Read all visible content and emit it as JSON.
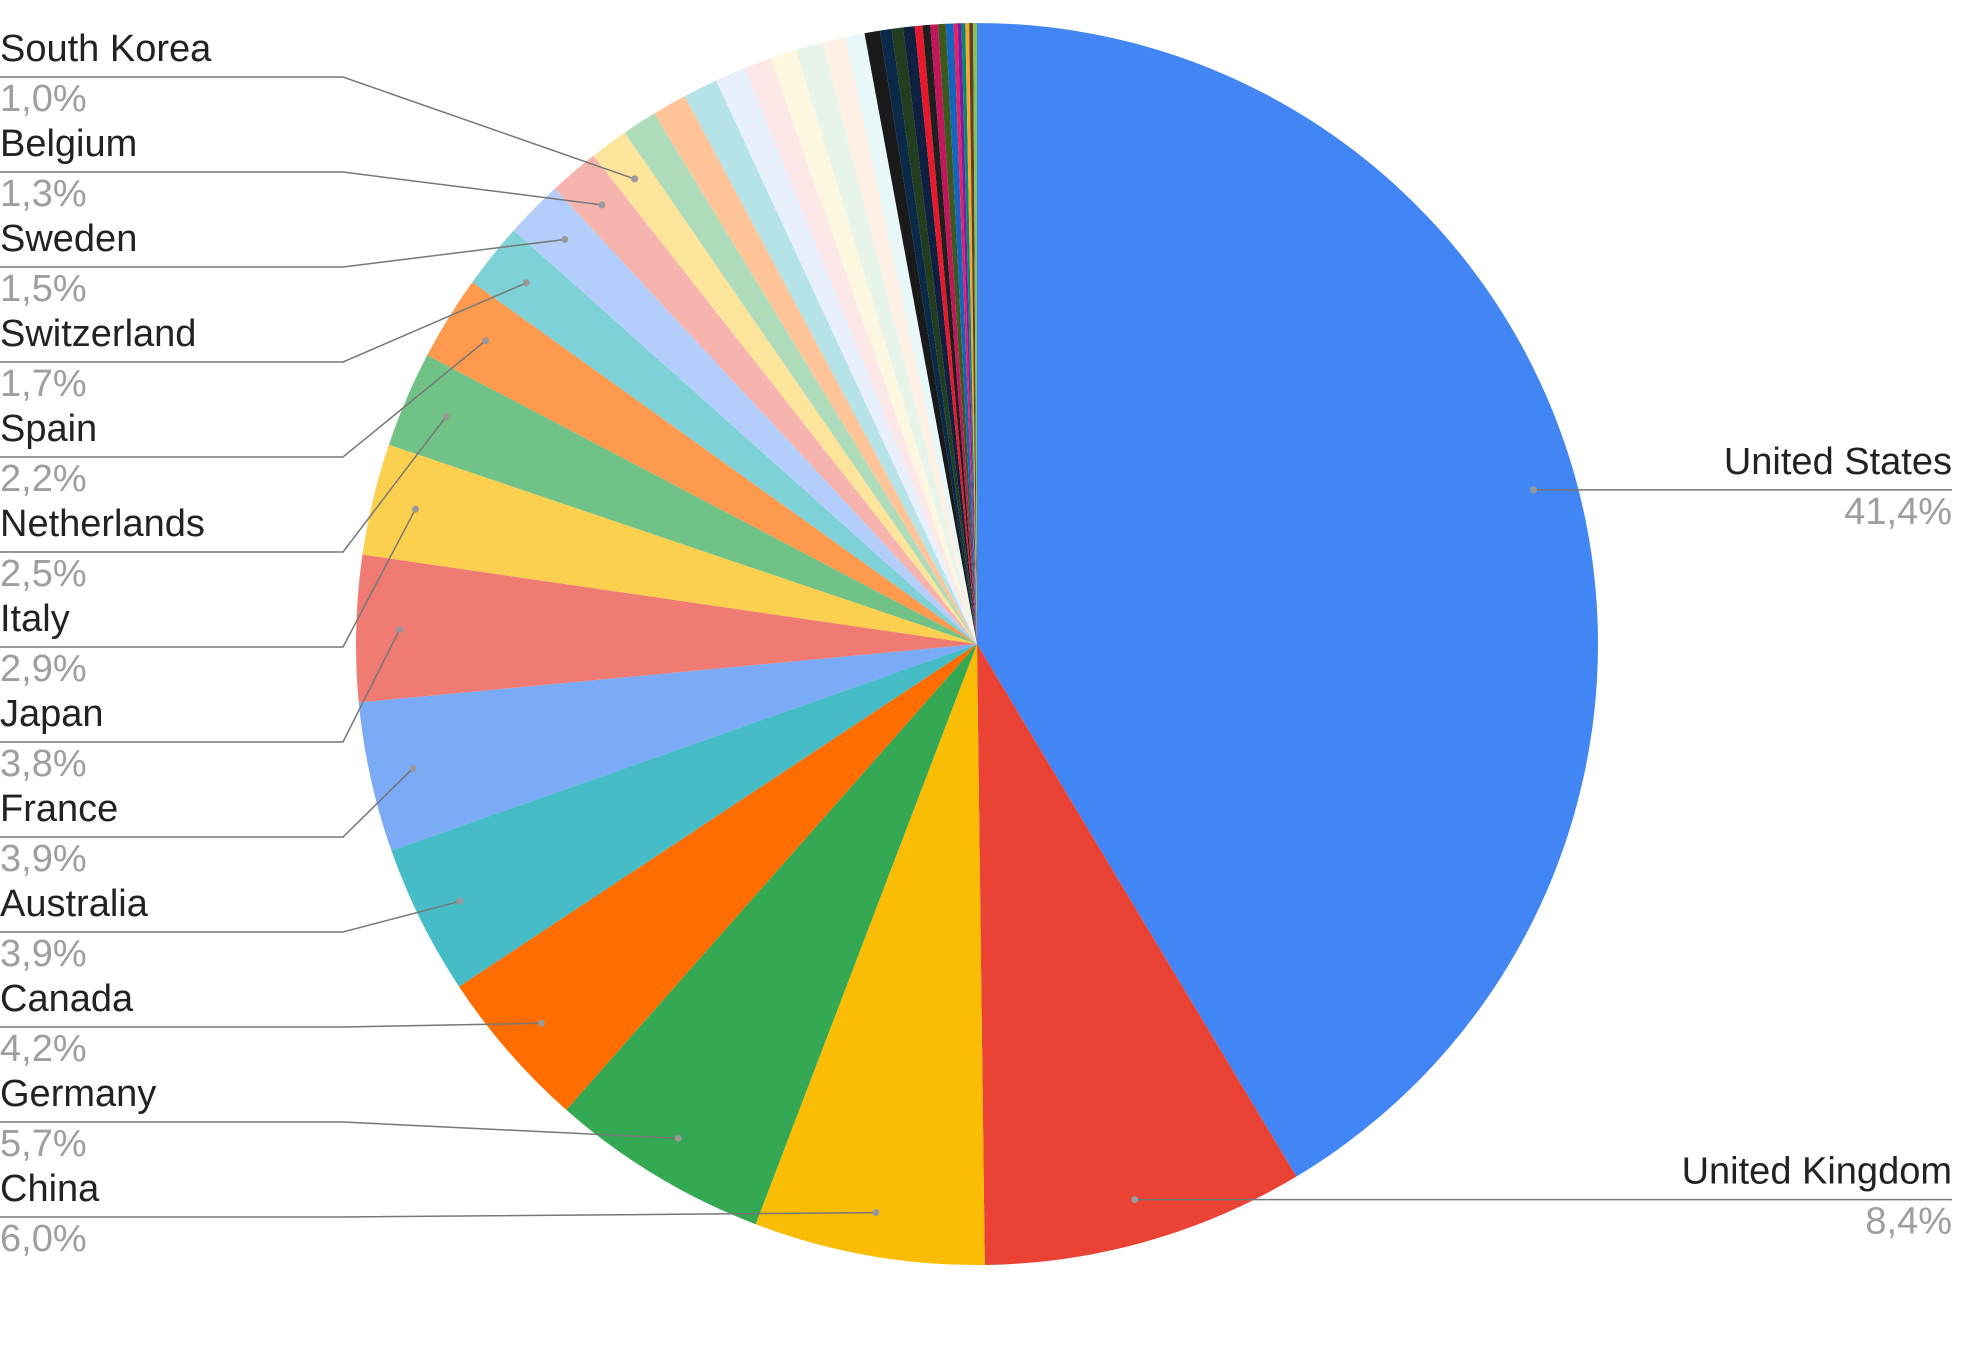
{
  "chart_data": {
    "type": "pie",
    "categories": [
      "United States",
      "United Kingdom",
      "China",
      "Germany",
      "Canada",
      "Australia",
      "France",
      "Japan",
      "Italy",
      "Netherlands",
      "Spain",
      "Switzerland",
      "Sweden",
      "Belgium",
      "South Korea",
      null,
      null,
      null,
      null,
      null,
      null,
      null,
      null,
      null,
      null,
      null,
      null,
      null,
      null,
      null,
      null,
      null,
      null,
      null,
      null,
      null,
      null,
      null,
      null
    ],
    "values": [
      41.4,
      8.4,
      6.0,
      5.7,
      4.2,
      3.9,
      3.9,
      3.8,
      2.9,
      2.5,
      2.2,
      1.7,
      1.5,
      1.3,
      1.0,
      0.9,
      0.9,
      0.9,
      0.8,
      0.7,
      0.7,
      0.7,
      0.6,
      0.5,
      0.4,
      0.3,
      0.3,
      0.3,
      0.2,
      0.2,
      0.2,
      0.2,
      0.2,
      0.1,
      0.1,
      0.1,
      0.1,
      0.1,
      0.1
    ],
    "value_labels": [
      "41,4%",
      "8,4%",
      "6,0%",
      "5,7%",
      "4,2%",
      "3,9%",
      "3,9%",
      "3,8%",
      "2,9%",
      "2,5%",
      "2,2%",
      "1,7%",
      "1,5%",
      "1,3%",
      "1,0%",
      null,
      null,
      null,
      null,
      null,
      null,
      null,
      null,
      null,
      null,
      null,
      null,
      null,
      null,
      null,
      null,
      null,
      null,
      null,
      null,
      null,
      null,
      null,
      null
    ],
    "colors": [
      "#4285f4",
      "#ea4335",
      "#fbbc04",
      "#34a853",
      "#ff6d01",
      "#46bdc6",
      "#7baaf7",
      "#f07b72",
      "#fcd04f",
      "#71c287",
      "#ff994d",
      "#7ed1d7",
      "#b3cefb",
      "#f7b4ae",
      "#fde49b",
      "#aedcba",
      "#ffc599",
      "#b5e3e7",
      "#e8f0fe",
      "#fce8e6",
      "#fef7e0",
      "#e6f4ea",
      "#fff0e5",
      "#e8f7f8",
      "#1a1a1a",
      "#0b2a4a",
      "#233d1f",
      "#102040",
      "#e8192c",
      "#1f1f1f",
      "#c2185b",
      "#3d5a1e",
      "#1565c0",
      "#e91e63",
      "#7b1fa2",
      "#00897b",
      "#f9a825",
      "#5d4037",
      "#8bc34a"
    ]
  }
}
